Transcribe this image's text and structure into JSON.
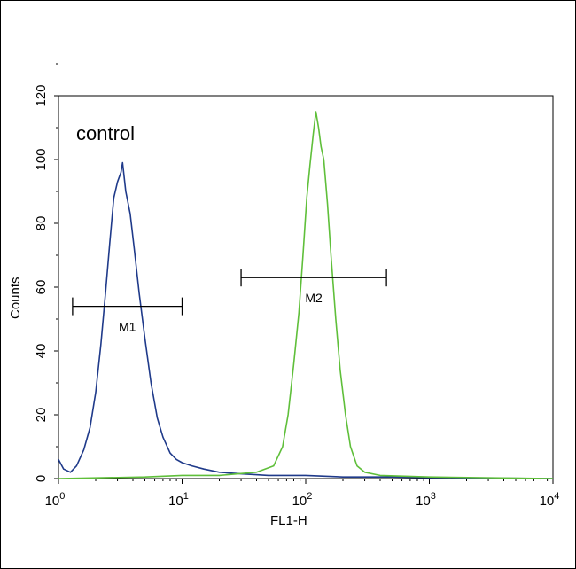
{
  "chart_data": {
    "type": "line",
    "xlabel": "FL1-H",
    "ylabel": "Counts",
    "xscale": "log",
    "xlim": [
      1,
      10000
    ],
    "ylim": [
      0,
      120
    ],
    "y_ticks": [
      0,
      20,
      40,
      60,
      80,
      100,
      120
    ],
    "x_ticks": [
      {
        "base": "10",
        "exp": "0",
        "value": 1
      },
      {
        "base": "10",
        "exp": "1",
        "value": 10
      },
      {
        "base": "10",
        "exp": "2",
        "value": 100
      },
      {
        "base": "10",
        "exp": "3",
        "value": 1000
      },
      {
        "base": "10",
        "exp": "4",
        "value": 10000
      }
    ],
    "annotation": "control",
    "grid": false,
    "series": [
      {
        "color": "#1f3a8a",
        "points": [
          [
            1.0,
            6
          ],
          [
            1.1,
            3
          ],
          [
            1.25,
            2
          ],
          [
            1.4,
            4
          ],
          [
            1.6,
            9
          ],
          [
            1.8,
            16
          ],
          [
            2.0,
            27
          ],
          [
            2.2,
            42
          ],
          [
            2.4,
            58
          ],
          [
            2.6,
            74
          ],
          [
            2.8,
            88
          ],
          [
            3.0,
            93
          ],
          [
            3.2,
            96
          ],
          [
            3.3,
            99
          ],
          [
            3.5,
            90
          ],
          [
            3.8,
            83
          ],
          [
            4.1,
            72
          ],
          [
            4.5,
            58
          ],
          [
            5.0,
            44
          ],
          [
            5.6,
            30
          ],
          [
            6.3,
            19
          ],
          [
            7.0,
            13
          ],
          [
            8.0,
            8
          ],
          [
            9.0,
            6
          ],
          [
            10,
            5
          ],
          [
            12,
            4
          ],
          [
            15,
            3
          ],
          [
            20,
            2
          ],
          [
            30,
            1.5
          ],
          [
            50,
            1
          ],
          [
            100,
            1
          ],
          [
            200,
            0.5
          ],
          [
            500,
            0.5
          ],
          [
            1000,
            0.3
          ],
          [
            10000,
            0
          ]
        ]
      },
      {
        "color": "#5fbf3a",
        "points": [
          [
            1,
            0
          ],
          [
            5,
            0.5
          ],
          [
            10,
            1
          ],
          [
            20,
            1
          ],
          [
            40,
            2
          ],
          [
            55,
            4
          ],
          [
            65,
            10
          ],
          [
            72,
            20
          ],
          [
            80,
            36
          ],
          [
            88,
            52
          ],
          [
            95,
            70
          ],
          [
            102,
            88
          ],
          [
            108,
            98
          ],
          [
            115,
            108
          ],
          [
            121,
            115
          ],
          [
            127,
            110
          ],
          [
            133,
            104
          ],
          [
            140,
            100
          ],
          [
            150,
            86
          ],
          [
            160,
            70
          ],
          [
            175,
            50
          ],
          [
            190,
            34
          ],
          [
            210,
            20
          ],
          [
            230,
            10
          ],
          [
            260,
            4
          ],
          [
            300,
            2
          ],
          [
            400,
            1
          ],
          [
            1000,
            0.5
          ],
          [
            10000,
            0
          ]
        ]
      }
    ],
    "markers": [
      {
        "label": "M1",
        "x_start": 1.3,
        "x_end": 10,
        "y": 54
      },
      {
        "label": "M2",
        "x_start": 30,
        "x_end": 450,
        "y": 63
      }
    ]
  }
}
